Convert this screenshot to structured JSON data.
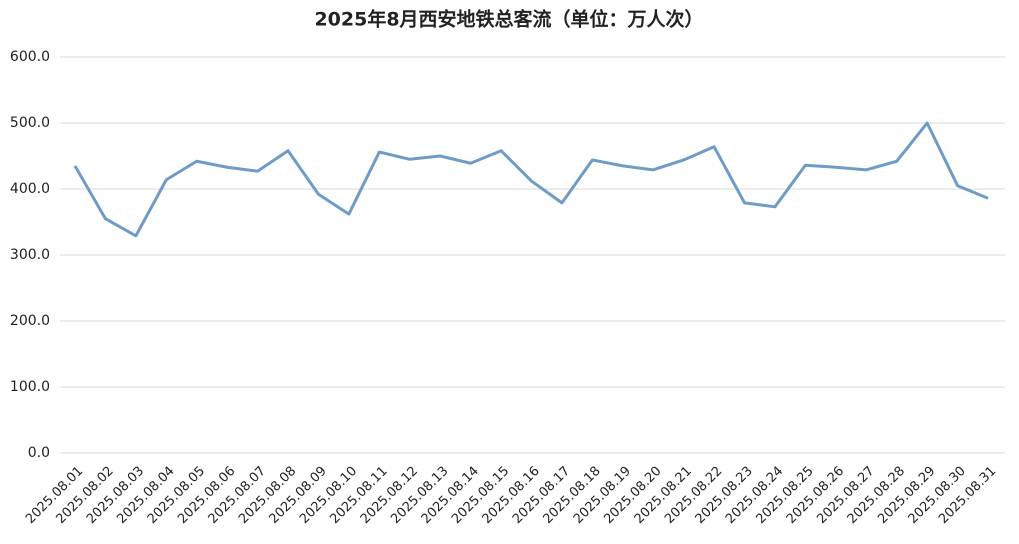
{
  "chart_data": {
    "type": "line",
    "title": "2025年8月西安地铁总客流（单位：万人次）",
    "categories": [
      "2025.08.01",
      "2025.08.02",
      "2025.08.03",
      "2025.08.04",
      "2025.08.05",
      "2025.08.06",
      "2025.08.07",
      "2025.08.08",
      "2025.08.09",
      "2025.08.10",
      "2025.08.11",
      "2025.08.12",
      "2025.08.13",
      "2025.08.14",
      "2025.08.15",
      "2025.08.16",
      "2025.08.17",
      "2025.08.18",
      "2025.08.19",
      "2025.08.20",
      "2025.08.21",
      "2025.08.22",
      "2025.08.23",
      "2025.08.24",
      "2025.08.25",
      "2025.08.26",
      "2025.08.27",
      "2025.08.28",
      "2025.08.29",
      "2025.08.30",
      "2025.08.31"
    ],
    "values": [
      435,
      355,
      329,
      414,
      442,
      433,
      427,
      458,
      392,
      362,
      456,
      445,
      450,
      439,
      458,
      412,
      379,
      444,
      435,
      429,
      444,
      464,
      379,
      373,
      436,
      433,
      429,
      442,
      500,
      405,
      386
    ],
    "color": "#6f9cc6",
    "ylim": [
      0,
      600
    ],
    "yticks": [
      {
        "value": 0,
        "label": "0.0"
      },
      {
        "value": 100,
        "label": "100.0"
      },
      {
        "value": 200,
        "label": "200.0"
      },
      {
        "value": 300,
        "label": "300.0"
      },
      {
        "value": 400,
        "label": "400.0"
      },
      {
        "value": 500,
        "label": "500.0"
      },
      {
        "value": 600,
        "label": "600.0"
      }
    ],
    "grid": true
  }
}
